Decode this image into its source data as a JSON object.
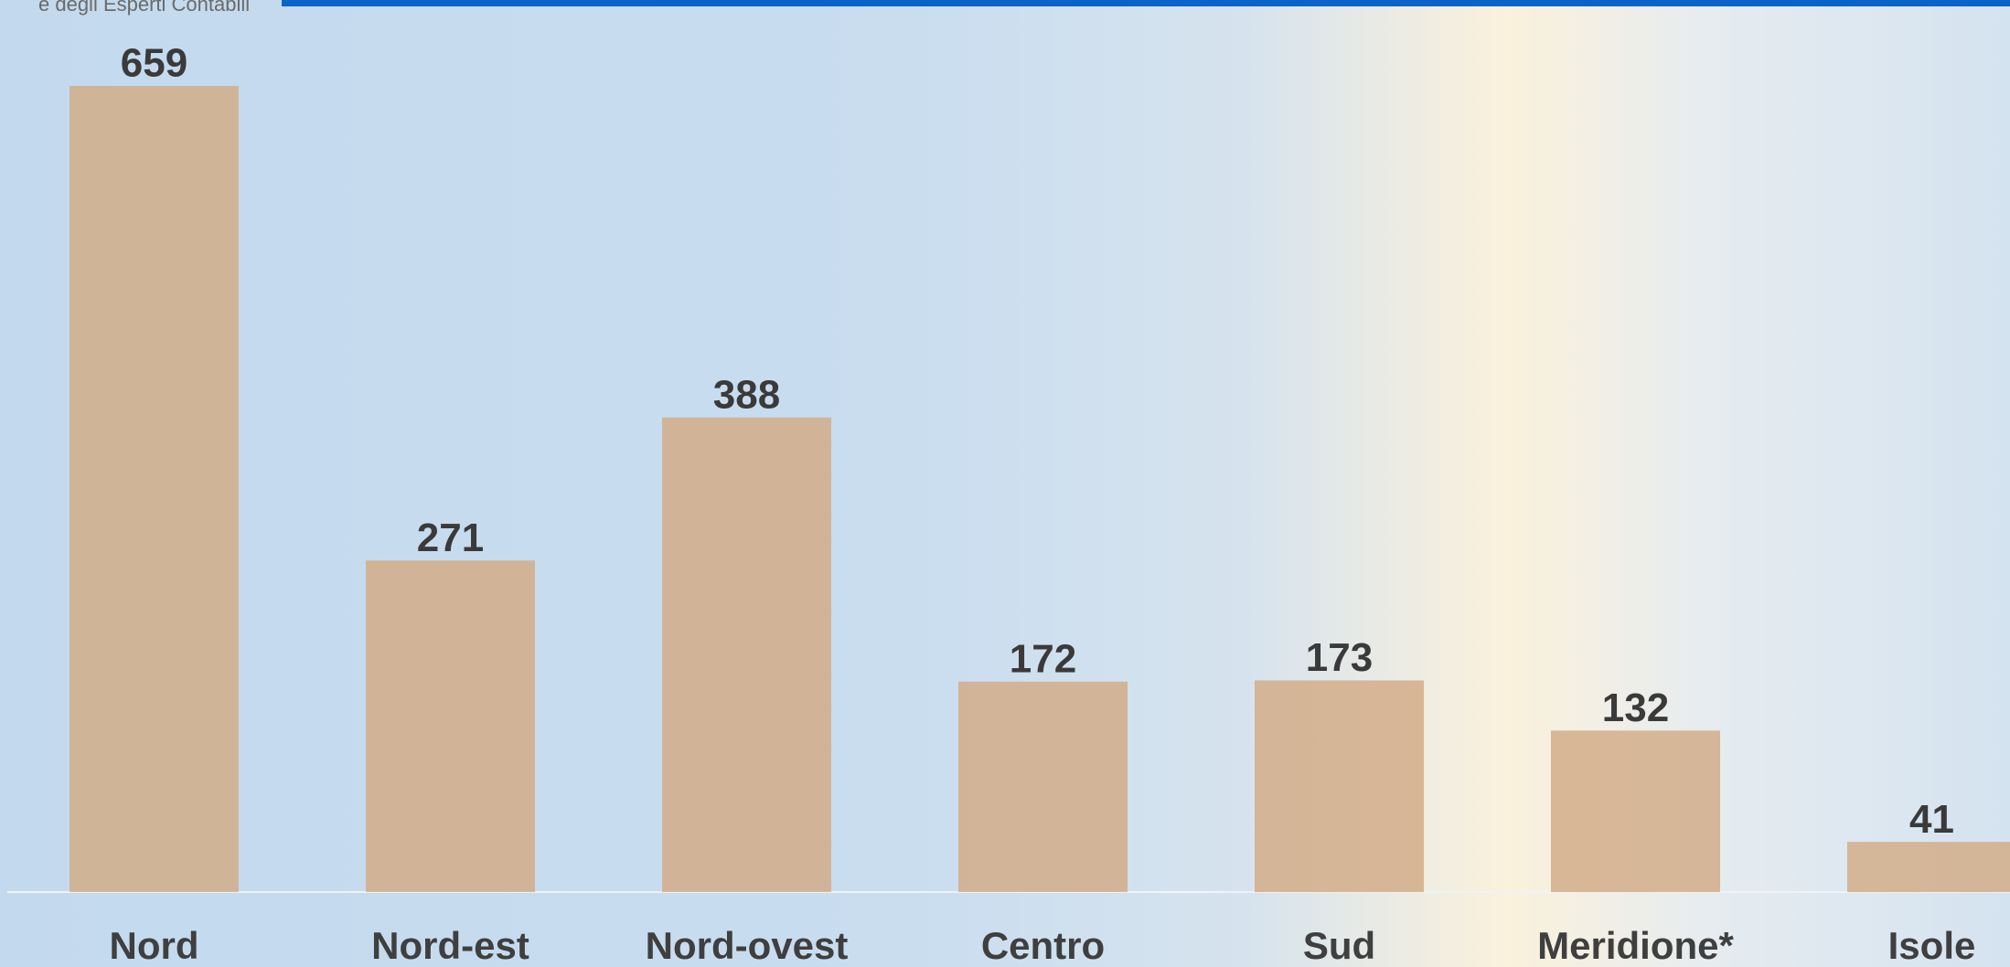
{
  "header": {
    "text": "e degli Esperti Contabili"
  },
  "chart_data": {
    "type": "bar",
    "categories": [
      "Nord",
      "Nord-est",
      "Nord-ovest",
      "Centro",
      "Sud",
      "Meridione*",
      "Isole"
    ],
    "values": [
      659,
      271,
      388,
      172,
      173,
      132,
      41
    ],
    "color": "#d2ad88"
  }
}
